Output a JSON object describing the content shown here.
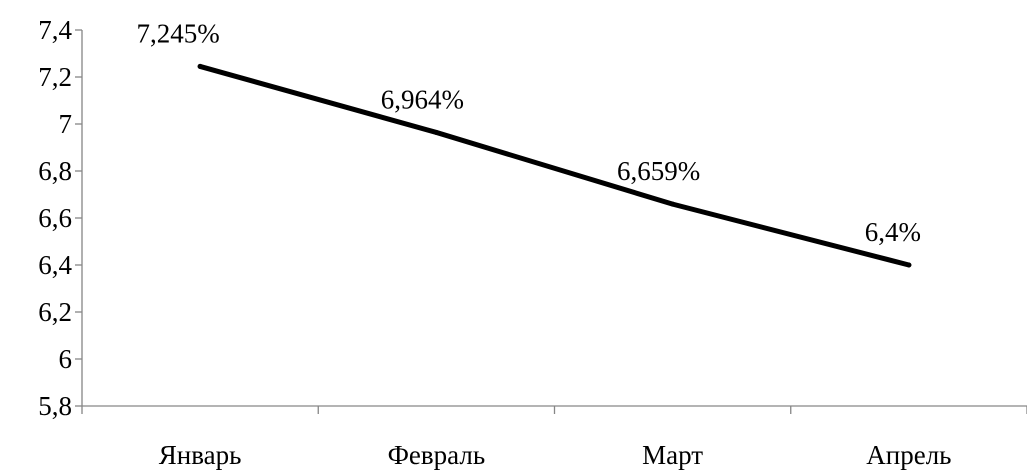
{
  "chart_data": {
    "type": "line",
    "categories": [
      "Январь",
      "Февраль",
      "Март",
      "Апрель"
    ],
    "series": [
      {
        "values": [
          7.245,
          6.964,
          6.659,
          6.4
        ]
      }
    ],
    "data_labels": [
      "7,245%",
      "6,964%",
      "6,659%",
      "6,4%"
    ],
    "y_ticks": [
      5.8,
      6,
      6.2,
      6.4,
      6.6,
      6.8,
      7,
      7.2,
      7.4
    ],
    "y_tick_labels": [
      "5,8",
      "6",
      "6,2",
      "6,4",
      "6,6",
      "6,8",
      "7",
      "7,2",
      "7,4"
    ],
    "ylim": [
      5.8,
      7.4
    ],
    "title": "",
    "xlabel": "",
    "ylabel": "",
    "grid": false,
    "legend": "none",
    "colors": {
      "line": "#000000",
      "axis": "#868686"
    }
  }
}
